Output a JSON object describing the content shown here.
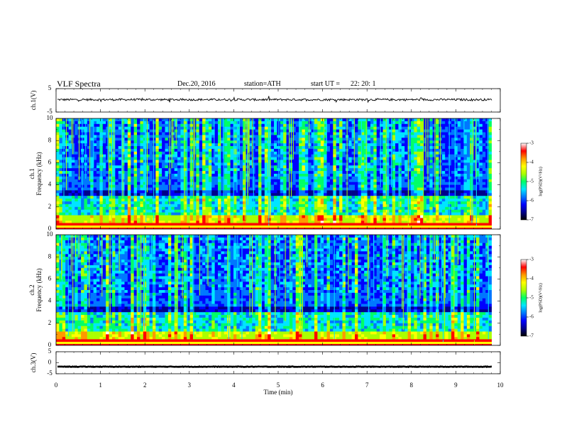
{
  "header": {
    "title": "VLF  Spectra",
    "date": "Dec.20, 2016",
    "station": "station=ATH",
    "start_label": "start  UT  =",
    "start_time": "22: 20: 1"
  },
  "chart_data": [
    {
      "type": "line",
      "id": "ch1",
      "ylabel": "ch.1(V)",
      "ylim": [
        -5,
        5
      ],
      "yticks": [
        "5",
        "-5"
      ],
      "xlim": [
        0,
        10
      ],
      "trace_color": "#000000",
      "trace_mean": 0.3
    },
    {
      "type": "heatmap",
      "id": "ch1_spec",
      "ylabel": "ch.1\nFrequency  (kHz)",
      "ylim": [
        0,
        10
      ],
      "yticks": [
        "0",
        "2",
        "4",
        "6",
        "8",
        "10"
      ],
      "xlim": [
        0,
        10
      ],
      "colorbar": {
        "label": "log(PSD)(V²/Hz)",
        "ticks": [
          "-3",
          "-4",
          "-5",
          "-6",
          "-7"
        ],
        "range": [
          -7,
          -3
        ]
      }
    },
    {
      "type": "heatmap",
      "id": "ch2_spec",
      "ylabel": "ch.2\nFrequency  (kHz)",
      "ylim": [
        0,
        10
      ],
      "yticks": [
        "0",
        "2",
        "4",
        "6",
        "8",
        "10"
      ],
      "xlim": [
        0,
        10
      ],
      "colorbar": {
        "label": "log(PSD)(V²/Hz)",
        "ticks": [
          "-3",
          "-4",
          "-5",
          "-6",
          "-7"
        ],
        "range": [
          -7,
          -3
        ]
      }
    },
    {
      "type": "line",
      "id": "ch3",
      "ylabel": "ch.3(V)",
      "ylim": [
        -5,
        5
      ],
      "yticks": [
        "5",
        "0",
        "-5"
      ],
      "xlim": [
        0,
        10
      ],
      "trace_color": "#000000",
      "trace_mean": -1.8
    }
  ],
  "xaxis": {
    "label": "Time  (min)",
    "ticks": [
      "0",
      "1",
      "2",
      "3",
      "4",
      "5",
      "6",
      "7",
      "8",
      "9",
      "10"
    ]
  },
  "colormap": [
    "#000000",
    "#00008b",
    "#0000ff",
    "#0077ff",
    "#00e5ff",
    "#00ff66",
    "#aaff00",
    "#ffff00",
    "#ff9900",
    "#ff0000",
    "#ffffff"
  ]
}
